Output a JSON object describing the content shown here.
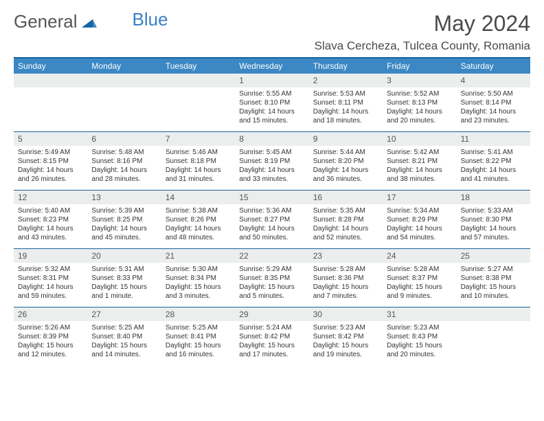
{
  "logo": {
    "part1": "General",
    "part2": "Blue"
  },
  "title": "May 2024",
  "location": "Slava Cercheza, Tulcea County, Romania",
  "colors": {
    "header_bg": "#3b88c4",
    "divider": "#1565a2",
    "daynum_bg": "#eceded",
    "text": "#333333"
  },
  "weekdays": [
    "Sunday",
    "Monday",
    "Tuesday",
    "Wednesday",
    "Thursday",
    "Friday",
    "Saturday"
  ],
  "weeks": [
    [
      {
        "num": "",
        "sunrise": "",
        "sunset": "",
        "daylight": ""
      },
      {
        "num": "",
        "sunrise": "",
        "sunset": "",
        "daylight": ""
      },
      {
        "num": "",
        "sunrise": "",
        "sunset": "",
        "daylight": ""
      },
      {
        "num": "1",
        "sunrise": "Sunrise: 5:55 AM",
        "sunset": "Sunset: 8:10 PM",
        "daylight": "Daylight: 14 hours and 15 minutes."
      },
      {
        "num": "2",
        "sunrise": "Sunrise: 5:53 AM",
        "sunset": "Sunset: 8:11 PM",
        "daylight": "Daylight: 14 hours and 18 minutes."
      },
      {
        "num": "3",
        "sunrise": "Sunrise: 5:52 AM",
        "sunset": "Sunset: 8:13 PM",
        "daylight": "Daylight: 14 hours and 20 minutes."
      },
      {
        "num": "4",
        "sunrise": "Sunrise: 5:50 AM",
        "sunset": "Sunset: 8:14 PM",
        "daylight": "Daylight: 14 hours and 23 minutes."
      }
    ],
    [
      {
        "num": "5",
        "sunrise": "Sunrise: 5:49 AM",
        "sunset": "Sunset: 8:15 PM",
        "daylight": "Daylight: 14 hours and 26 minutes."
      },
      {
        "num": "6",
        "sunrise": "Sunrise: 5:48 AM",
        "sunset": "Sunset: 8:16 PM",
        "daylight": "Daylight: 14 hours and 28 minutes."
      },
      {
        "num": "7",
        "sunrise": "Sunrise: 5:46 AM",
        "sunset": "Sunset: 8:18 PM",
        "daylight": "Daylight: 14 hours and 31 minutes."
      },
      {
        "num": "8",
        "sunrise": "Sunrise: 5:45 AM",
        "sunset": "Sunset: 8:19 PM",
        "daylight": "Daylight: 14 hours and 33 minutes."
      },
      {
        "num": "9",
        "sunrise": "Sunrise: 5:44 AM",
        "sunset": "Sunset: 8:20 PM",
        "daylight": "Daylight: 14 hours and 36 minutes."
      },
      {
        "num": "10",
        "sunrise": "Sunrise: 5:42 AM",
        "sunset": "Sunset: 8:21 PM",
        "daylight": "Daylight: 14 hours and 38 minutes."
      },
      {
        "num": "11",
        "sunrise": "Sunrise: 5:41 AM",
        "sunset": "Sunset: 8:22 PM",
        "daylight": "Daylight: 14 hours and 41 minutes."
      }
    ],
    [
      {
        "num": "12",
        "sunrise": "Sunrise: 5:40 AM",
        "sunset": "Sunset: 8:23 PM",
        "daylight": "Daylight: 14 hours and 43 minutes."
      },
      {
        "num": "13",
        "sunrise": "Sunrise: 5:39 AM",
        "sunset": "Sunset: 8:25 PM",
        "daylight": "Daylight: 14 hours and 45 minutes."
      },
      {
        "num": "14",
        "sunrise": "Sunrise: 5:38 AM",
        "sunset": "Sunset: 8:26 PM",
        "daylight": "Daylight: 14 hours and 48 minutes."
      },
      {
        "num": "15",
        "sunrise": "Sunrise: 5:36 AM",
        "sunset": "Sunset: 8:27 PM",
        "daylight": "Daylight: 14 hours and 50 minutes."
      },
      {
        "num": "16",
        "sunrise": "Sunrise: 5:35 AM",
        "sunset": "Sunset: 8:28 PM",
        "daylight": "Daylight: 14 hours and 52 minutes."
      },
      {
        "num": "17",
        "sunrise": "Sunrise: 5:34 AM",
        "sunset": "Sunset: 8:29 PM",
        "daylight": "Daylight: 14 hours and 54 minutes."
      },
      {
        "num": "18",
        "sunrise": "Sunrise: 5:33 AM",
        "sunset": "Sunset: 8:30 PM",
        "daylight": "Daylight: 14 hours and 57 minutes."
      }
    ],
    [
      {
        "num": "19",
        "sunrise": "Sunrise: 5:32 AM",
        "sunset": "Sunset: 8:31 PM",
        "daylight": "Daylight: 14 hours and 59 minutes."
      },
      {
        "num": "20",
        "sunrise": "Sunrise: 5:31 AM",
        "sunset": "Sunset: 8:33 PM",
        "daylight": "Daylight: 15 hours and 1 minute."
      },
      {
        "num": "21",
        "sunrise": "Sunrise: 5:30 AM",
        "sunset": "Sunset: 8:34 PM",
        "daylight": "Daylight: 15 hours and 3 minutes."
      },
      {
        "num": "22",
        "sunrise": "Sunrise: 5:29 AM",
        "sunset": "Sunset: 8:35 PM",
        "daylight": "Daylight: 15 hours and 5 minutes."
      },
      {
        "num": "23",
        "sunrise": "Sunrise: 5:28 AM",
        "sunset": "Sunset: 8:36 PM",
        "daylight": "Daylight: 15 hours and 7 minutes."
      },
      {
        "num": "24",
        "sunrise": "Sunrise: 5:28 AM",
        "sunset": "Sunset: 8:37 PM",
        "daylight": "Daylight: 15 hours and 9 minutes."
      },
      {
        "num": "25",
        "sunrise": "Sunrise: 5:27 AM",
        "sunset": "Sunset: 8:38 PM",
        "daylight": "Daylight: 15 hours and 10 minutes."
      }
    ],
    [
      {
        "num": "26",
        "sunrise": "Sunrise: 5:26 AM",
        "sunset": "Sunset: 8:39 PM",
        "daylight": "Daylight: 15 hours and 12 minutes."
      },
      {
        "num": "27",
        "sunrise": "Sunrise: 5:25 AM",
        "sunset": "Sunset: 8:40 PM",
        "daylight": "Daylight: 15 hours and 14 minutes."
      },
      {
        "num": "28",
        "sunrise": "Sunrise: 5:25 AM",
        "sunset": "Sunset: 8:41 PM",
        "daylight": "Daylight: 15 hours and 16 minutes."
      },
      {
        "num": "29",
        "sunrise": "Sunrise: 5:24 AM",
        "sunset": "Sunset: 8:42 PM",
        "daylight": "Daylight: 15 hours and 17 minutes."
      },
      {
        "num": "30",
        "sunrise": "Sunrise: 5:23 AM",
        "sunset": "Sunset: 8:42 PM",
        "daylight": "Daylight: 15 hours and 19 minutes."
      },
      {
        "num": "31",
        "sunrise": "Sunrise: 5:23 AM",
        "sunset": "Sunset: 8:43 PM",
        "daylight": "Daylight: 15 hours and 20 minutes."
      },
      {
        "num": "",
        "sunrise": "",
        "sunset": "",
        "daylight": ""
      }
    ]
  ]
}
